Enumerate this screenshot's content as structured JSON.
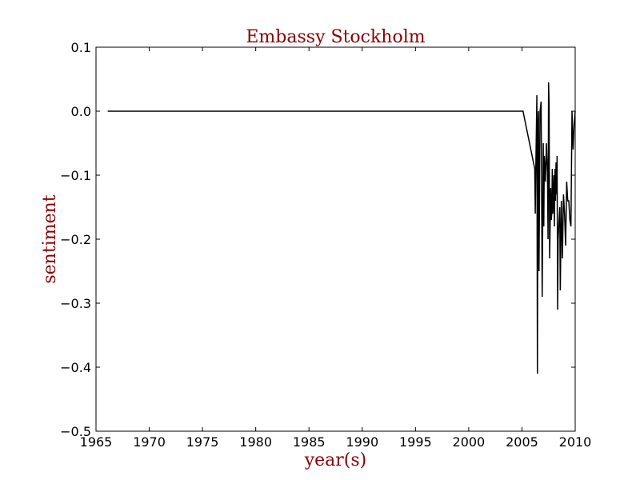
{
  "chart_data": {
    "type": "line",
    "title": "Embassy Stockholm",
    "xlabel": "year(s)",
    "ylabel": "sentiment",
    "xlim": [
      1965,
      2010
    ],
    "ylim": [
      -0.5,
      0.1
    ],
    "xticks": [
      1965,
      1970,
      1975,
      1980,
      1985,
      1990,
      1995,
      2000,
      2005,
      2010
    ],
    "xtick_labels": [
      "1965",
      "1970",
      "1975",
      "1980",
      "1985",
      "1990",
      "1995",
      "2000",
      "2005",
      "2010"
    ],
    "yticks": [
      0.1,
      0.0,
      -0.1,
      -0.2,
      -0.3,
      -0.4,
      -0.5
    ],
    "ytick_labels": [
      "0.1",
      "0.0",
      "−0.1",
      "−0.2",
      "−0.3",
      "−0.4",
      "−0.5"
    ],
    "grid": false,
    "line_color": "#000000",
    "title_color": "#8b0000",
    "series": [
      {
        "x": [
          1966.1,
          2005.1,
          2006.2,
          2006.25,
          2006.3,
          2006.4,
          2006.45,
          2006.5,
          2006.55,
          2006.6,
          2006.7,
          2006.8,
          2006.9,
          2007.0,
          2007.05,
          2007.1,
          2007.2,
          2007.3,
          2007.4,
          2007.45,
          2007.5,
          2007.55,
          2007.6,
          2007.7,
          2007.75,
          2007.8,
          2007.85,
          2007.9,
          2008.0,
          2008.05,
          2008.1,
          2008.15,
          2008.2,
          2008.25,
          2008.3,
          2008.35,
          2008.4,
          2008.45,
          2008.55,
          2008.6,
          2008.7,
          2008.8,
          2008.9,
          2009.0,
          2009.1,
          2009.2,
          2009.3,
          2009.4,
          2009.5,
          2009.6,
          2009.7,
          2009.8,
          2009.9,
          2010.0
        ],
        "y": [
          0.0,
          0.0,
          -0.09,
          -0.16,
          -0.09,
          0.025,
          -0.41,
          -0.02,
          0.0,
          -0.25,
          0.0,
          0.015,
          -0.29,
          -0.05,
          -0.18,
          -0.07,
          -0.11,
          -0.05,
          -0.1,
          -0.2,
          0.045,
          0.01,
          -0.23,
          -0.12,
          -0.17,
          -0.16,
          -0.09,
          -0.16,
          -0.1,
          -0.18,
          -0.09,
          -0.14,
          -0.08,
          -0.13,
          -0.07,
          -0.31,
          -0.2,
          -0.18,
          -0.15,
          -0.28,
          -0.14,
          -0.23,
          -0.13,
          -0.16,
          -0.21,
          -0.11,
          -0.14,
          -0.14,
          -0.17,
          -0.18,
          0.0,
          -0.06,
          -0.02,
          0.0
        ]
      }
    ]
  }
}
